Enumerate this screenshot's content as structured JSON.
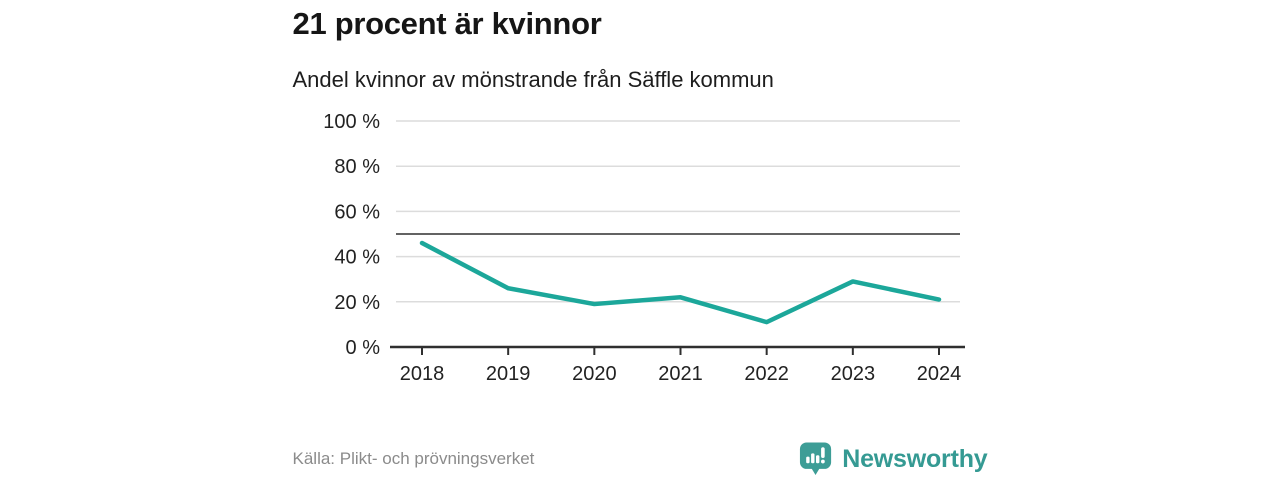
{
  "header": {
    "title": "21 procent är kvinnor",
    "subtitle": "Andel kvinnor av mönstrande från Säffle kommun"
  },
  "footer": {
    "source": "Källa: Plikt- och prövningsverket",
    "brand": "Newsworthy"
  },
  "colors": {
    "line": "#1ca79a",
    "brand": "#3d9d96",
    "grid": "#dcdcdc",
    "axis": "#2f2f2f",
    "reference_line": "#4d4d4d",
    "tick_text": "#222222"
  },
  "chart_data": {
    "type": "line",
    "title": "21 procent är kvinnor",
    "subtitle": "Andel kvinnor av mönstrande från Säffle kommun",
    "x": [
      2018,
      2019,
      2020,
      2021,
      2022,
      2023,
      2024
    ],
    "series": [
      {
        "name": "Andel kvinnor av mönstrande",
        "values": [
          46,
          26,
          19,
          22,
          11,
          29,
          21
        ]
      }
    ],
    "xlabel": "",
    "ylabel": "",
    "ylim": [
      0,
      100
    ],
    "yticks": [
      0,
      20,
      40,
      60,
      80,
      100
    ],
    "ytick_suffix": " %",
    "reference_line": 50,
    "grid": "horizontal",
    "legend": "none"
  }
}
